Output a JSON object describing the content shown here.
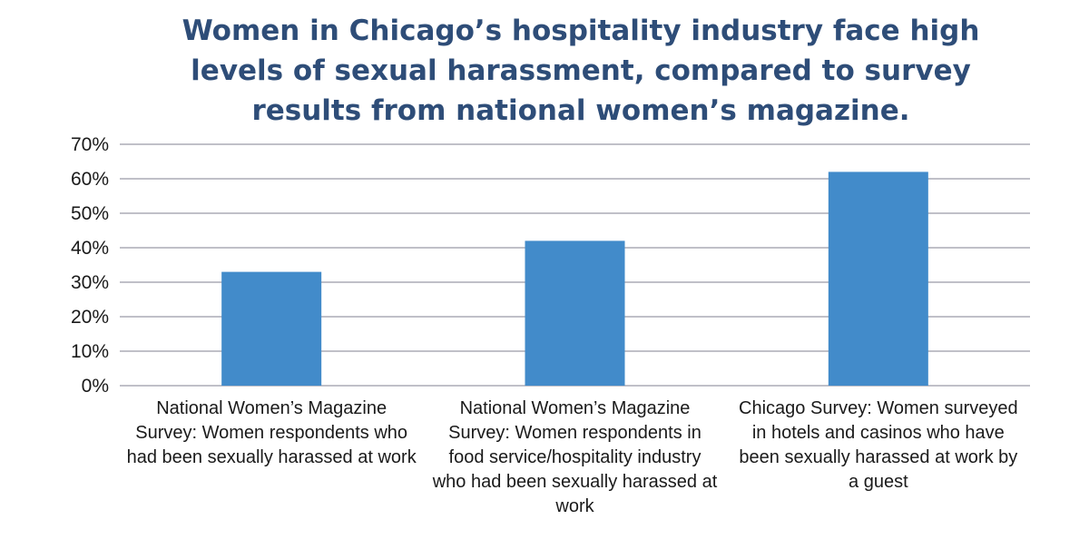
{
  "chart_data": {
    "type": "bar",
    "title": "Women in Chicago’s hospitality industry face high levels of sexual harassment, compared to survey results from national women’s magazine.",
    "categories": [
      "National Women’s Magazine Survey: Women respondents who had been sexually harassed at work",
      "National Women’s Magazine Survey: Women respondents in food service/hospitality industry who had been sexually harassed at work",
      "Chicago Survey: Women surveyed in hotels and casinos who have been sexually harassed at work by a guest"
    ],
    "values": [
      33,
      42,
      62
    ],
    "unit": "%",
    "ylim": [
      0,
      70
    ],
    "yticks": [
      "0%",
      "10%",
      "20%",
      "30%",
      "40%",
      "50%",
      "60%",
      "70%"
    ],
    "grid": true,
    "bar_color": "#428bca",
    "title_color": "#2e4d78",
    "grid_color": "#c0c0c8"
  }
}
